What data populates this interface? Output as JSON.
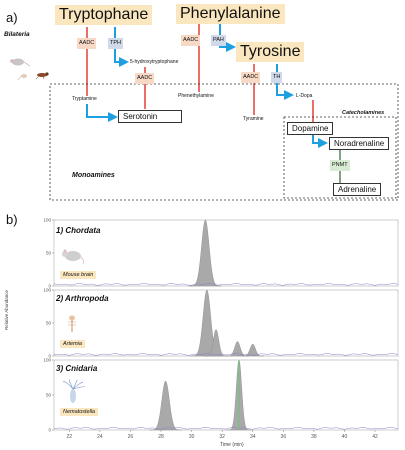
{
  "panel_a": {
    "label": "a)",
    "group": "Bilateria",
    "compounds": {
      "tryptophane": "Tryptophane",
      "phenylalanine": "Phenylalanine",
      "tyrosine": "Tyrosine"
    },
    "enzymes": {
      "aadc": "AADC",
      "tph": "TPH",
      "pah": "PAH",
      "th": "TH",
      "pnmt": "PNMT"
    },
    "intermediates": {
      "hydroxytryptophane": "5-hydroxytryptophane",
      "tryptamine": "Tryptamine",
      "phenethylamine": "Phenethylamine",
      "tyramine": "Tyramine",
      "ldopa": "L-Dopa"
    },
    "products": {
      "serotonin": "Serotonin",
      "dopamine": "Dopamine",
      "noradrenaline": "Noradrenaline",
      "adrenaline": "Adrenaline"
    },
    "groups": {
      "monoamines": "Monoamines",
      "catecholamines": "Catecholamines"
    },
    "colors": {
      "red": "#e0302a",
      "blue": "#1e9fe0",
      "green": "#4a7d4a"
    }
  },
  "panel_b": {
    "label": "b)",
    "ylabel": "Relative Abundance",
    "xlabel": "Time (min)",
    "panels": [
      {
        "title": "1) Chordata",
        "organism": "Mouse brain"
      },
      {
        "title": "2) Arthropoda",
        "organism": "Artemia"
      },
      {
        "title": "3) Cnidaria",
        "organism": "Nematostella"
      }
    ]
  },
  "chart_data": {
    "type": "line",
    "xlabel": "Time (min)",
    "ylabel": "Relative Abundance",
    "xlim": [
      21,
      43.5
    ],
    "x_ticks": [
      22,
      24,
      26,
      28,
      30,
      32,
      34,
      36,
      38,
      40,
      42
    ],
    "y_ticks": [
      0,
      50,
      100
    ],
    "ylim": [
      0,
      100
    ],
    "series": [
      {
        "panel": "1) Chordata",
        "peaks": [
          [
            30.9,
            100
          ]
        ]
      },
      {
        "panel": "2) Arthropoda",
        "peaks": [
          [
            31.0,
            100
          ],
          [
            31.6,
            40
          ],
          [
            33.0,
            22
          ],
          [
            34.0,
            18
          ]
        ]
      },
      {
        "panel": "3) Cnidaria",
        "peaks": [
          [
            28.3,
            70
          ],
          [
            33.1,
            100
          ]
        ]
      }
    ]
  }
}
